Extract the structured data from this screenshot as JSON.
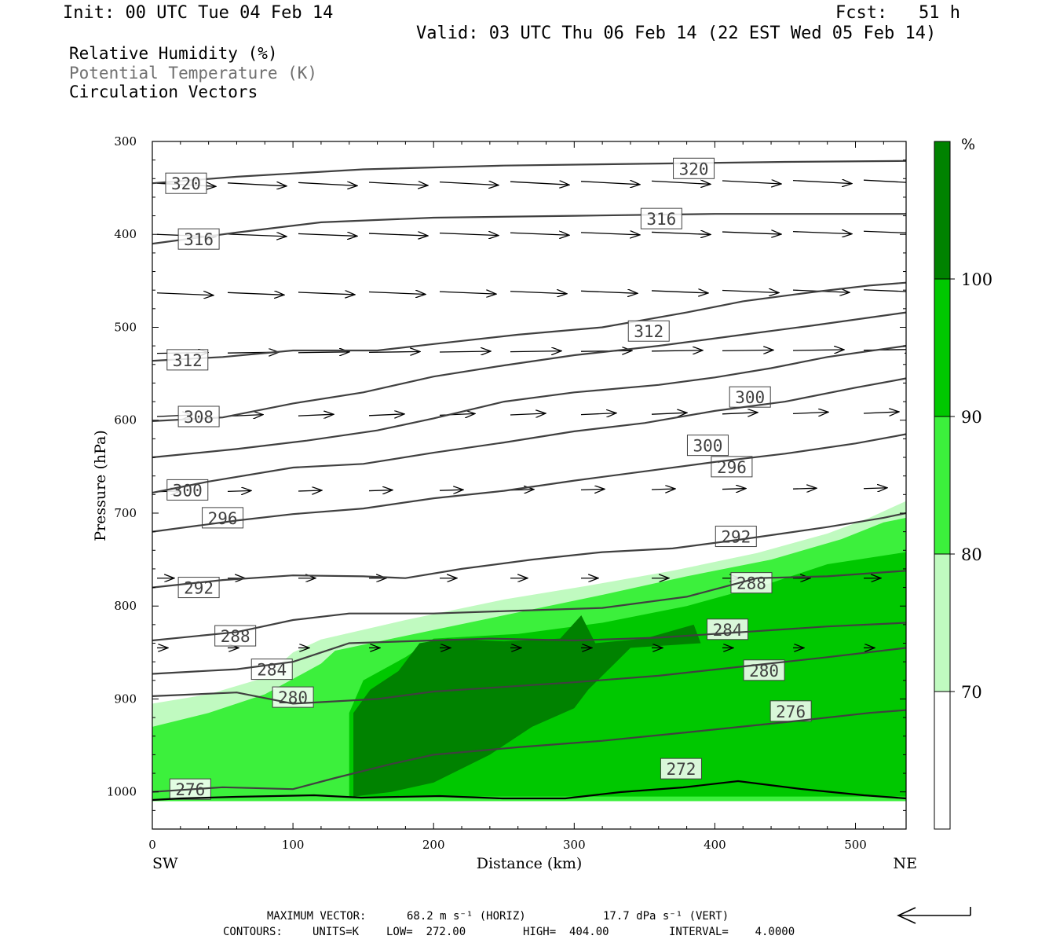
{
  "header": {
    "init": "Init: 00 UTC Tue 04 Feb 14",
    "fcst": "Fcst:   51 h",
    "valid": "Valid: 03 UTC Thu 06 Feb 14 (22 EST Wed 05 Feb 14)"
  },
  "legend": {
    "field1": "Relative Humidity (%)",
    "field2": "Potential Temperature (K)",
    "field3": "Circulation Vectors"
  },
  "footer": {
    "max_vector_label": "MAXIMUM VECTOR:",
    "max_vector_horiz": "68.2 m s⁻¹ (HORIZ)",
    "max_vector_vert": "17.7 dPa s⁻¹ (VERT)",
    "contours_label": "CONTOURS:",
    "contours_units": "UNITS=K",
    "contours_low": "LOW=  272.00",
    "contours_high": "HIGH=  404.00",
    "contours_interval": "INTERVAL=    4.0000"
  },
  "colors": {
    "rh70": "#c0fac0",
    "rh80": "#3cf03c",
    "rh90": "#00c800",
    "rh100": "#008200",
    "contour": "#404040",
    "vector": "#000000"
  },
  "chart_data": {
    "type": "cross-section",
    "xlabel": "Distance (km)",
    "ylabel": "Pressure (hPa)",
    "xlim": [
      0,
      536
    ],
    "ylim": [
      1040,
      300
    ],
    "x_ticks": [
      0,
      100,
      200,
      300,
      400,
      500
    ],
    "y_ticks": [
      300,
      400,
      500,
      600,
      700,
      800,
      900,
      1000
    ],
    "left_end_label": "SW",
    "right_end_label": "NE",
    "colorbar": {
      "unit": "%",
      "levels": [
        70,
        80,
        90,
        100
      ],
      "colors": [
        "#ffffff",
        "#c0fac0",
        "#3cf03c",
        "#00c800",
        "#008200"
      ]
    },
    "rh_regions": [
      {
        "level": 70,
        "points": [
          [
            0,
            905
          ],
          [
            40,
            895
          ],
          [
            80,
            877
          ],
          [
            100,
            850
          ],
          [
            120,
            836
          ],
          [
            180,
            815
          ],
          [
            250,
            793
          ],
          [
            310,
            778
          ],
          [
            370,
            762
          ],
          [
            430,
            743
          ],
          [
            480,
            722
          ],
          [
            510,
            705
          ],
          [
            536,
            687
          ],
          [
            536,
            1010
          ],
          [
            0,
            1010
          ]
        ]
      },
      {
        "level": 80,
        "points": [
          [
            0,
            930
          ],
          [
            40,
            915
          ],
          [
            80,
            895
          ],
          [
            120,
            862
          ],
          [
            130,
            848
          ],
          [
            180,
            832
          ],
          [
            250,
            810
          ],
          [
            320,
            788
          ],
          [
            380,
            768
          ],
          [
            440,
            750
          ],
          [
            490,
            728
          ],
          [
            520,
            710
          ],
          [
            536,
            705
          ],
          [
            536,
            1010
          ],
          [
            0,
            1010
          ]
        ]
      },
      {
        "level": 90,
        "points": [
          [
            140,
            915
          ],
          [
            150,
            880
          ],
          [
            180,
            855
          ],
          [
            200,
            835
          ],
          [
            260,
            830
          ],
          [
            320,
            818
          ],
          [
            380,
            800
          ],
          [
            440,
            775
          ],
          [
            480,
            755
          ],
          [
            536,
            742
          ],
          [
            536,
            1005
          ],
          [
            140,
            1005
          ]
        ]
      },
      {
        "level": 100,
        "points": [
          [
            143,
            1005
          ],
          [
            143,
            915
          ],
          [
            155,
            890
          ],
          [
            175,
            870
          ],
          [
            190,
            840
          ],
          [
            210,
            835
          ],
          [
            250,
            838
          ],
          [
            290,
            835
          ],
          [
            305,
            810
          ],
          [
            315,
            840
          ],
          [
            350,
            835
          ],
          [
            385,
            820
          ],
          [
            390,
            840
          ],
          [
            340,
            845
          ],
          [
            330,
            860
          ],
          [
            320,
            875
          ],
          [
            310,
            890
          ],
          [
            300,
            910
          ],
          [
            270,
            930
          ],
          [
            240,
            960
          ],
          [
            200,
            990
          ],
          [
            170,
            1000
          ]
        ]
      }
    ],
    "contours": [
      {
        "label": "320",
        "points": [
          [
            0,
            345
          ],
          [
            60,
            338
          ],
          [
            150,
            330
          ],
          [
            250,
            326
          ],
          [
            350,
            324
          ],
          [
            450,
            322
          ],
          [
            536,
            321
          ]
        ]
      },
      {
        "label": "316",
        "points": [
          [
            0,
            410
          ],
          [
            60,
            398
          ],
          [
            120,
            387
          ],
          [
            200,
            382
          ],
          [
            300,
            380
          ],
          [
            400,
            378
          ],
          [
            536,
            378
          ]
        ]
      },
      {
        "label": "312",
        "points": [
          [
            0,
            536
          ],
          [
            50,
            532
          ],
          [
            100,
            525
          ],
          [
            160,
            525
          ],
          [
            200,
            518
          ],
          [
            260,
            508
          ],
          [
            320,
            500
          ],
          [
            380,
            484
          ],
          [
            420,
            472
          ],
          [
            470,
            462
          ],
          [
            510,
            455
          ],
          [
            536,
            452
          ]
        ]
      },
      {
        "label": "308",
        "points": [
          [
            0,
            601
          ],
          [
            50,
            597
          ],
          [
            100,
            582
          ],
          [
            150,
            570
          ],
          [
            200,
            553
          ],
          [
            250,
            541
          ],
          [
            300,
            530
          ],
          [
            360,
            520
          ],
          [
            420,
            508
          ],
          [
            470,
            498
          ],
          [
            536,
            484
          ]
        ]
      },
      {
        "label": "300",
        "points": [
          [
            0,
            640
          ],
          [
            60,
            631
          ],
          [
            110,
            622
          ],
          [
            160,
            611
          ],
          [
            200,
            598
          ],
          [
            250,
            580
          ],
          [
            300,
            570
          ],
          [
            360,
            562
          ],
          [
            400,
            554
          ],
          [
            440,
            544
          ],
          [
            480,
            532
          ],
          [
            536,
            520
          ]
        ]
      },
      {
        "label": "296",
        "points": [
          [
            0,
            678
          ],
          [
            40,
            666
          ],
          [
            100,
            651
          ],
          [
            150,
            647
          ],
          [
            200,
            635
          ],
          [
            250,
            624
          ],
          [
            300,
            612
          ],
          [
            350,
            603
          ],
          [
            400,
            590
          ],
          [
            450,
            580
          ],
          [
            500,
            565
          ],
          [
            536,
            555
          ]
        ]
      },
      {
        "label": "292",
        "points": [
          [
            0,
            720
          ],
          [
            60,
            708
          ],
          [
            100,
            701
          ],
          [
            150,
            695
          ],
          [
            200,
            684
          ],
          [
            250,
            676
          ],
          [
            300,
            665
          ],
          [
            350,
            655
          ],
          [
            400,
            645
          ],
          [
            450,
            636
          ],
          [
            500,
            625
          ],
          [
            536,
            615
          ]
        ]
      },
      {
        "label": "288",
        "points": [
          [
            0,
            780
          ],
          [
            50,
            772
          ],
          [
            100,
            767
          ],
          [
            150,
            768
          ],
          [
            180,
            770
          ],
          [
            220,
            760
          ],
          [
            270,
            750
          ],
          [
            320,
            742
          ],
          [
            370,
            738
          ],
          [
            420,
            728
          ],
          [
            480,
            715
          ],
          [
            520,
            705
          ],
          [
            536,
            700
          ]
        ]
      },
      {
        "label": "284",
        "points": [
          [
            0,
            837
          ],
          [
            60,
            828
          ],
          [
            100,
            815
          ],
          [
            140,
            808
          ],
          [
            200,
            808
          ],
          [
            260,
            805
          ],
          [
            320,
            802
          ],
          [
            380,
            790
          ],
          [
            430,
            770
          ],
          [
            480,
            768
          ],
          [
            536,
            762
          ]
        ]
      },
      {
        "label": "280",
        "points": [
          [
            0,
            873
          ],
          [
            60,
            868
          ],
          [
            100,
            860
          ],
          [
            140,
            840
          ],
          [
            180,
            838
          ],
          [
            240,
            835
          ],
          [
            300,
            837
          ],
          [
            360,
            834
          ],
          [
            420,
            828
          ],
          [
            480,
            822
          ],
          [
            536,
            818
          ]
        ]
      },
      {
        "label": "276",
        "points": [
          [
            0,
            897
          ],
          [
            60,
            893
          ],
          [
            100,
            905
          ],
          [
            160,
            900
          ],
          [
            200,
            892
          ],
          [
            240,
            888
          ],
          [
            300,
            882
          ],
          [
            360,
            875
          ],
          [
            420,
            865
          ],
          [
            480,
            855
          ],
          [
            536,
            845
          ]
        ]
      },
      {
        "label": "272",
        "points": [
          [
            0,
            1000
          ],
          [
            50,
            995
          ],
          [
            100,
            997
          ],
          [
            130,
            985
          ],
          [
            170,
            970
          ],
          [
            200,
            960
          ],
          [
            260,
            952
          ],
          [
            320,
            945
          ],
          [
            380,
            936
          ],
          [
            450,
            925
          ],
          [
            510,
            915
          ],
          [
            536,
            912
          ]
        ]
      }
    ]
  }
}
